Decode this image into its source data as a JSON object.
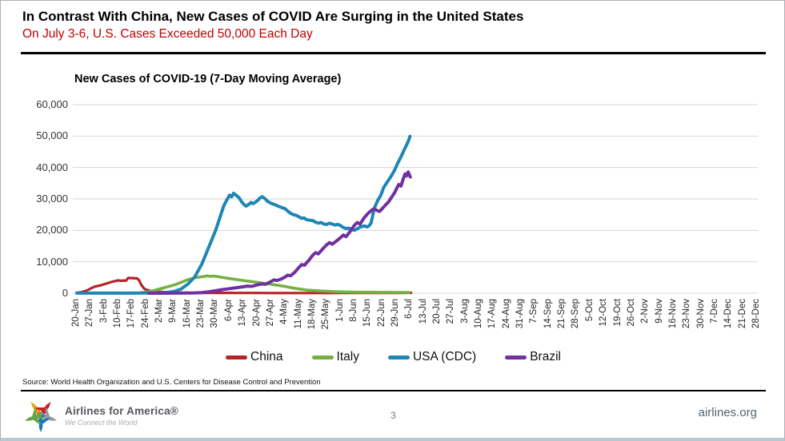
{
  "header": {
    "title": "In Contrast With China, New Cases of COVID Are Surging in the United States",
    "subtitle": "On July 3-6, U.S. Cases Exceeded 50,000 Each Day",
    "subtitle_color": "#C00000"
  },
  "chart_data": {
    "type": "line",
    "title": "New Cases of COVID-19 (7-Day Moving Average)",
    "xlabel": "",
    "ylabel": "",
    "ylim": [
      0,
      60000
    ],
    "grid": true,
    "legend_position": "bottom",
    "ytick_values": [
      0,
      10000,
      20000,
      30000,
      40000,
      50000,
      60000
    ],
    "ytick_labels": [
      "0",
      "10,000",
      "20,000",
      "30,000",
      "40,000",
      "50,000",
      "60,000"
    ],
    "x_labels": [
      "20-Jan",
      "27-Jan",
      "3-Feb",
      "10-Feb",
      "17-Feb",
      "24-Feb",
      "2-Mar",
      "9-Mar",
      "16-Mar",
      "23-Mar",
      "30-Mar",
      "6-Apr",
      "13-Apr",
      "20-Apr",
      "27-Apr",
      "4-May",
      "11-May",
      "18-May",
      "25-May",
      "1-Jun",
      "8-Jun",
      "15-Jun",
      "22-Jun",
      "29-Jun",
      "6-Jul",
      "13-Jul",
      "20-Jul",
      "27-Jul",
      "3-Aug",
      "10-Aug",
      "17-Aug",
      "24-Aug",
      "31-Aug",
      "7-Sep",
      "14-Sep",
      "21-Sep",
      "28-Sep",
      "5-Oct",
      "12-Oct",
      "19-Oct",
      "26-Oct",
      "2-Nov",
      "9-Nov",
      "16-Nov",
      "23-Nov",
      "30-Nov",
      "7-Dec",
      "14-Dec",
      "21-Dec",
      "28-Dec"
    ],
    "series": [
      {
        "name": "China",
        "color": "#B32427",
        "width": 3.2,
        "points": [
          [
            0,
            150
          ],
          [
            0.3,
            300
          ],
          [
            0.7,
            800
          ],
          [
            1,
            1500
          ],
          [
            1.3,
            2100
          ],
          [
            1.7,
            2500
          ],
          [
            2,
            2900
          ],
          [
            2.3,
            3300
          ],
          [
            2.6,
            3700
          ],
          [
            3,
            4100
          ],
          [
            3.15,
            3950
          ],
          [
            3.35,
            4050
          ],
          [
            3.55,
            4000
          ],
          [
            3.7,
            4850
          ],
          [
            4,
            4800
          ],
          [
            4.35,
            4700
          ],
          [
            4.5,
            4000
          ],
          [
            4.65,
            2600
          ],
          [
            4.85,
            1500
          ],
          [
            5,
            1100
          ],
          [
            5.3,
            750
          ],
          [
            5.6,
            550
          ],
          [
            6,
            450
          ],
          [
            6.5,
            280
          ],
          [
            7,
            180
          ],
          [
            7.5,
            140
          ],
          [
            8,
            130
          ],
          [
            9,
            110
          ],
          [
            10,
            100
          ],
          [
            11,
            90
          ],
          [
            12,
            80
          ],
          [
            13,
            70
          ],
          [
            14,
            60
          ],
          [
            15,
            50
          ],
          [
            16,
            40
          ],
          [
            17,
            40
          ],
          [
            18,
            40
          ],
          [
            19,
            70
          ],
          [
            20,
            110
          ],
          [
            21,
            90
          ],
          [
            22,
            70
          ],
          [
            23,
            90
          ],
          [
            24.08,
            130
          ]
        ]
      },
      {
        "name": "Italy",
        "color": "#76B042",
        "width": 3.6,
        "points": [
          [
            3,
            0
          ],
          [
            3.5,
            10
          ],
          [
            4,
            30
          ],
          [
            4.3,
            60
          ],
          [
            4.6,
            160
          ],
          [
            5,
            350
          ],
          [
            5.5,
            800
          ],
          [
            6,
            1400
          ],
          [
            6.5,
            2000
          ],
          [
            7,
            2600
          ],
          [
            7.5,
            3400
          ],
          [
            8,
            4300
          ],
          [
            8.5,
            4900
          ],
          [
            9,
            5250
          ],
          [
            9.25,
            5400
          ],
          [
            9.45,
            5550
          ],
          [
            9.6,
            5350
          ],
          [
            9.8,
            5450
          ],
          [
            10,
            5400
          ],
          [
            10.3,
            5150
          ],
          [
            10.7,
            4850
          ],
          [
            11,
            4650
          ],
          [
            11.5,
            4350
          ],
          [
            12,
            4050
          ],
          [
            12.5,
            3750
          ],
          [
            13,
            3450
          ],
          [
            13.5,
            3150
          ],
          [
            14,
            2850
          ],
          [
            14.5,
            2500
          ],
          [
            15,
            2150
          ],
          [
            15.5,
            1700
          ],
          [
            16,
            1350
          ],
          [
            16.5,
            1050
          ],
          [
            17,
            870
          ],
          [
            17.5,
            720
          ],
          [
            18,
            610
          ],
          [
            18.5,
            510
          ],
          [
            19,
            430
          ],
          [
            19.5,
            380
          ],
          [
            20,
            340
          ],
          [
            20.5,
            315
          ],
          [
            21,
            305
          ],
          [
            21.5,
            295
          ],
          [
            22,
            285
          ],
          [
            22.5,
            275
          ],
          [
            23,
            265
          ],
          [
            23.5,
            245
          ],
          [
            23.95,
            225
          ]
        ]
      },
      {
        "name": "USA (CDC)",
        "color": "#1E86B5",
        "width": 4,
        "points": [
          [
            0,
            20
          ],
          [
            1,
            25
          ],
          [
            2,
            28
          ],
          [
            3,
            30
          ],
          [
            4,
            35
          ],
          [
            5,
            45
          ],
          [
            6,
            120
          ],
          [
            6.5,
            260
          ],
          [
            7,
            560
          ],
          [
            7.5,
            1300
          ],
          [
            8,
            2900
          ],
          [
            8.5,
            5200
          ],
          [
            9,
            9200
          ],
          [
            9.5,
            14600
          ],
          [
            10,
            20000
          ],
          [
            10.3,
            24000
          ],
          [
            10.6,
            28000
          ],
          [
            11,
            31200
          ],
          [
            11.15,
            30700
          ],
          [
            11.3,
            31800
          ],
          [
            11.5,
            31100
          ],
          [
            11.7,
            30300
          ],
          [
            11.85,
            29200
          ],
          [
            12,
            28400
          ],
          [
            12.2,
            27700
          ],
          [
            12.4,
            28300
          ],
          [
            12.55,
            28900
          ],
          [
            12.7,
            28500
          ],
          [
            13,
            29400
          ],
          [
            13.2,
            30300
          ],
          [
            13.35,
            30700
          ],
          [
            13.55,
            30100
          ],
          [
            13.75,
            29200
          ],
          [
            14,
            28600
          ],
          [
            14.2,
            28300
          ],
          [
            14.5,
            27700
          ],
          [
            14.8,
            27200
          ],
          [
            15,
            26900
          ],
          [
            15.2,
            26100
          ],
          [
            15.4,
            25400
          ],
          [
            15.6,
            25000
          ],
          [
            15.8,
            24800
          ],
          [
            16,
            24300
          ],
          [
            16.2,
            23800
          ],
          [
            16.35,
            24000
          ],
          [
            16.55,
            23400
          ],
          [
            16.8,
            23200
          ],
          [
            17,
            23100
          ],
          [
            17.2,
            22600
          ],
          [
            17.4,
            22300
          ],
          [
            17.6,
            22500
          ],
          [
            17.8,
            22000
          ],
          [
            18,
            21900
          ],
          [
            18.2,
            22300
          ],
          [
            18.4,
            22000
          ],
          [
            18.6,
            21700
          ],
          [
            18.8,
            21900
          ],
          [
            19,
            21500
          ],
          [
            19.2,
            20900
          ],
          [
            19.4,
            20600
          ],
          [
            19.6,
            20700
          ],
          [
            19.8,
            20300
          ],
          [
            20,
            20000
          ],
          [
            20.2,
            20500
          ],
          [
            20.45,
            21100
          ],
          [
            20.7,
            21400
          ],
          [
            20.9,
            21100
          ],
          [
            21.05,
            21400
          ],
          [
            21.2,
            22400
          ],
          [
            21.35,
            25500
          ],
          [
            21.5,
            27800
          ],
          [
            21.7,
            29700
          ],
          [
            21.9,
            31200
          ],
          [
            22.1,
            33600
          ],
          [
            22.35,
            35300
          ],
          [
            22.6,
            36900
          ],
          [
            22.85,
            38800
          ],
          [
            23.1,
            41200
          ],
          [
            23.35,
            43400
          ],
          [
            23.6,
            45800
          ],
          [
            23.8,
            47600
          ],
          [
            23.92,
            48800
          ],
          [
            24,
            49900
          ]
        ]
      },
      {
        "name": "Brazil",
        "color": "#7030A0",
        "width": 4,
        "points": [
          [
            5.2,
            0
          ],
          [
            6,
            0
          ],
          [
            7,
            20
          ],
          [
            8,
            50
          ],
          [
            8.5,
            90
          ],
          [
            9,
            200
          ],
          [
            9.5,
            420
          ],
          [
            10,
            800
          ],
          [
            10.5,
            1150
          ],
          [
            11,
            1450
          ],
          [
            11.5,
            1750
          ],
          [
            12,
            2050
          ],
          [
            12.3,
            2250
          ],
          [
            12.6,
            2150
          ],
          [
            13,
            2650
          ],
          [
            13.3,
            2950
          ],
          [
            13.6,
            2850
          ],
          [
            14,
            3750
          ],
          [
            14.2,
            4250
          ],
          [
            14.4,
            4050
          ],
          [
            14.7,
            4450
          ],
          [
            15,
            5150
          ],
          [
            15.2,
            5750
          ],
          [
            15.4,
            5550
          ],
          [
            15.7,
            6650
          ],
          [
            16,
            8200
          ],
          [
            16.2,
            9100
          ],
          [
            16.4,
            8900
          ],
          [
            16.7,
            10400
          ],
          [
            17,
            12100
          ],
          [
            17.2,
            12900
          ],
          [
            17.4,
            12500
          ],
          [
            17.7,
            14000
          ],
          [
            18,
            15400
          ],
          [
            18.2,
            16100
          ],
          [
            18.4,
            15600
          ],
          [
            18.7,
            16600
          ],
          [
            19,
            17700
          ],
          [
            19.2,
            18500
          ],
          [
            19.4,
            18000
          ],
          [
            19.7,
            19700
          ],
          [
            20,
            21600
          ],
          [
            20.2,
            22500
          ],
          [
            20.4,
            22000
          ],
          [
            20.7,
            24000
          ],
          [
            21,
            25500
          ],
          [
            21.2,
            26300
          ],
          [
            21.4,
            26900
          ],
          [
            21.6,
            26400
          ],
          [
            21.8,
            26000
          ],
          [
            22,
            26900
          ],
          [
            22.2,
            27900
          ],
          [
            22.45,
            29000
          ],
          [
            22.7,
            30700
          ],
          [
            22.9,
            32000
          ],
          [
            23.05,
            33400
          ],
          [
            23.2,
            34600
          ],
          [
            23.35,
            34100
          ],
          [
            23.5,
            36200
          ],
          [
            23.65,
            38000
          ],
          [
            23.75,
            37300
          ],
          [
            23.87,
            38600
          ],
          [
            24.02,
            37000
          ]
        ]
      }
    ]
  },
  "source": "Source: World Health Organization and U.S. Centers for Disease Control and Prevention",
  "footer": {
    "brand": "Airlines for America®",
    "tagline": "We Connect the World",
    "page_number": "3",
    "website": "airlines.org",
    "logo_colors": {
      "yellow": "#F0A500",
      "red": "#CC2027",
      "gray": "#97999B",
      "blue": "#1C75BC",
      "green": "#62A744"
    }
  }
}
